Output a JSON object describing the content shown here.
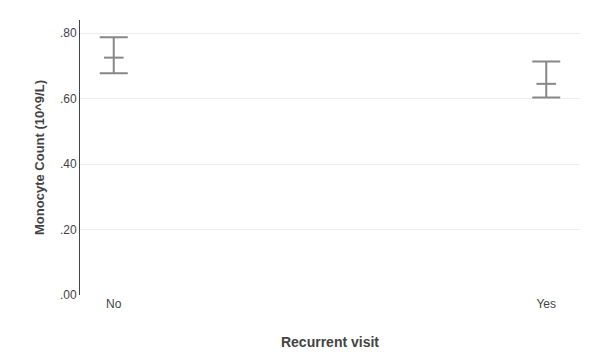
{
  "chart_data": {
    "type": "errorbar",
    "categories": [
      "No",
      "Yes"
    ],
    "values": [
      0.725,
      0.645
    ],
    "upper_errors": [
      0.062,
      0.068
    ],
    "lower_errors": [
      0.048,
      0.042
    ],
    "color": "#888888",
    "xlabel": "Recurrent visit",
    "ylabel": "Monocyte Count (10^9/L)",
    "ylim": [
      0.0,
      0.84
    ],
    "yticks": [
      {
        "value": 0.0,
        "label": ".00"
      },
      {
        "value": 0.2,
        "label": ".20"
      },
      {
        "value": 0.4,
        "label": ".40"
      },
      {
        "value": 0.6,
        "label": ".60"
      },
      {
        "value": 0.8,
        "label": ".80"
      }
    ],
    "grid": true
  }
}
